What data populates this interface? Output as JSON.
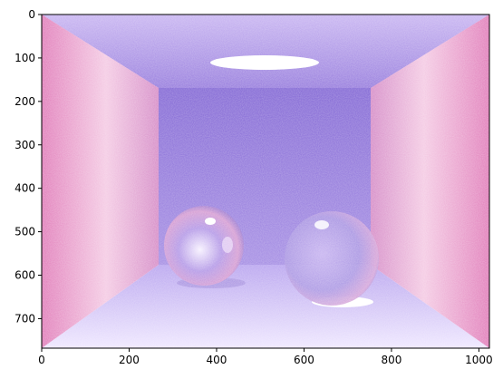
{
  "image": {
    "description_type": "rendered-scene",
    "x_extent": [
      0,
      1024
    ],
    "y_extent": [
      0,
      768
    ]
  },
  "axes": {
    "x_ticks": [
      0,
      200,
      400,
      600,
      800,
      1000
    ],
    "x_tick_labels": [
      "0",
      "200",
      "400",
      "600",
      "800",
      "1000"
    ],
    "y_ticks": [
      0,
      100,
      200,
      300,
      400,
      500,
      600,
      700
    ],
    "y_tick_labels": [
      "0",
      "100",
      "200",
      "300",
      "400",
      "500",
      "600",
      "700"
    ]
  },
  "colors": {
    "left_wall": "#e69ac8",
    "right_wall": "#e89acb",
    "back_wall": "#8b6fd8",
    "ceiling": "#a58ae6",
    "floor": "#c7b6f2",
    "light": "#ffffff"
  }
}
